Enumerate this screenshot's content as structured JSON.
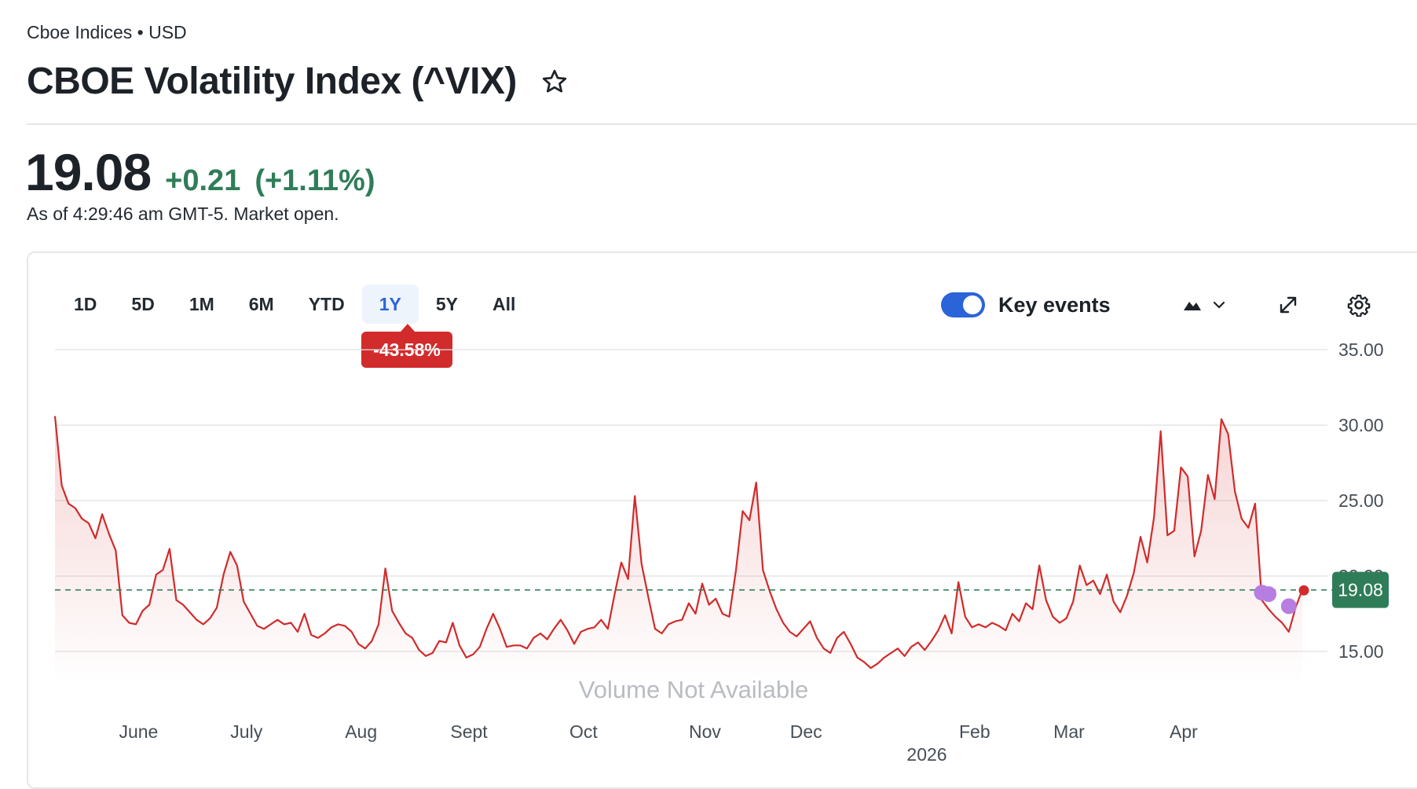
{
  "breadcrumb": "Cboe Indices • USD",
  "title": "CBOE Volatility Index (^VIX)",
  "quote": {
    "price": "19.08",
    "change": "+0.21",
    "change_percent": "(+1.11%)",
    "as_of": "As of 4:29:46 am GMT-5. Market open."
  },
  "ranges": [
    "1D",
    "5D",
    "1M",
    "6M",
    "YTD",
    "1Y",
    "5Y",
    "All"
  ],
  "active_range": "1Y",
  "range_change_badge": "-43.58%",
  "key_events_label": "Key events",
  "key_events_on": true,
  "volume_note": "Volume Not Available",
  "colors": {
    "line": "#d12b2b",
    "positive": "#2f7d58",
    "accent": "#2b63d9",
    "event": "#b57ee0"
  },
  "icons": [
    "star-icon",
    "mountain-chart-icon",
    "chevron-down-icon",
    "expand-icon",
    "gear-icon"
  ],
  "chart_data": {
    "type": "area",
    "y_ticks": [
      "35.00",
      "30.00",
      "25.00",
      "20.00",
      "15.00"
    ],
    "ylim": [
      15,
      35
    ],
    "month_labels": [
      "June",
      "July",
      "Aug",
      "Sept",
      "Oct",
      "Nov",
      "Dec",
      "Feb",
      "Mar",
      "Apr"
    ],
    "year_label": "2026",
    "current_label": "19.08",
    "reference_value": 19.08,
    "series": [
      {
        "values": [
          30.6,
          26.0,
          24.8,
          24.5,
          23.8,
          23.5,
          22.5,
          24.1,
          22.8,
          21.7,
          17.4,
          16.9,
          16.8,
          17.7,
          18.1,
          20.1,
          20.4,
          21.8,
          18.4,
          18.1,
          17.6,
          17.1,
          16.8,
          17.2,
          17.9,
          20.1,
          21.6,
          20.7,
          18.3,
          17.5,
          16.7,
          16.5,
          16.8,
          17.1,
          16.8,
          16.9,
          16.3,
          17.5,
          16.1,
          15.9,
          16.2,
          16.6,
          16.8,
          16.7,
          16.3,
          15.5,
          15.2,
          15.7,
          16.8,
          20.5,
          17.7,
          16.9,
          16.2,
          15.9,
          15.1,
          14.7,
          14.9,
          15.7,
          15.6,
          16.9,
          15.4,
          14.6,
          14.8,
          15.3,
          16.5,
          17.5,
          16.5,
          15.3,
          15.4,
          15.4,
          15.2,
          15.9,
          16.2,
          15.8,
          16.5,
          17.1,
          16.4,
          15.5,
          16.3,
          16.5,
          16.6,
          17.1,
          16.5,
          18.8,
          20.9,
          19.8,
          25.3,
          20.8,
          18.6,
          16.5,
          16.2,
          16.8,
          17.0,
          17.1,
          18.2,
          17.5,
          19.5,
          18.1,
          18.5,
          17.5,
          17.3,
          20.4,
          24.3,
          23.7,
          26.2,
          20.4,
          19.0,
          17.8,
          16.9,
          16.3,
          16.0,
          16.5,
          17.0,
          15.9,
          15.2,
          14.9,
          15.9,
          16.3,
          15.5,
          14.6,
          14.3,
          13.9,
          14.2,
          14.6,
          14.9,
          15.2,
          14.7,
          15.3,
          15.6,
          15.1,
          15.7,
          16.4,
          17.4,
          16.2,
          19.6,
          17.3,
          16.6,
          16.8,
          16.6,
          16.9,
          16.7,
          16.4,
          17.5,
          17.0,
          18.2,
          17.8,
          20.7,
          18.4,
          17.3,
          16.9,
          17.2,
          18.3,
          20.7,
          19.4,
          19.7,
          18.8,
          20.1,
          18.3,
          17.6,
          18.7,
          20.2,
          22.6,
          20.9,
          23.9,
          29.6,
          22.7,
          23.0,
          27.2,
          26.6,
          21.3,
          23.0,
          26.7,
          25.1,
          30.4,
          29.4,
          25.6,
          23.8,
          23.2,
          24.8,
          18.4,
          17.8,
          17.3,
          16.9,
          16.3,
          17.9,
          19.1
        ]
      }
    ]
  }
}
